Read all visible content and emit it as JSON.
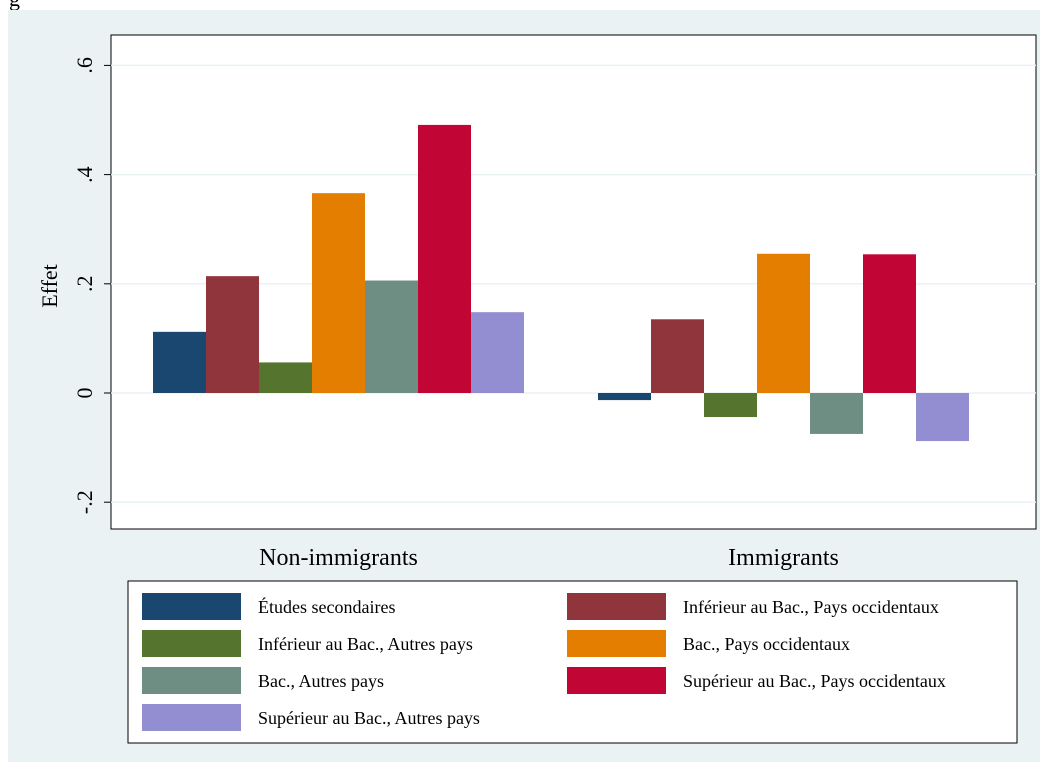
{
  "corner_label": "g",
  "colors": {
    "background": "#eaf2f3",
    "plot": "#ffffff",
    "grid": "#eaf2f3"
  },
  "chart_data": {
    "type": "bar",
    "title": "",
    "xlabel": "",
    "ylabel": "Effet",
    "ylim": [
      -0.25,
      0.65
    ],
    "yticks": [
      -0.2,
      0,
      0.2,
      0.4,
      0.6
    ],
    "ytick_labels": [
      "-.2",
      "0",
      ".2",
      ".4",
      ".6"
    ],
    "grid": true,
    "legend_position": "bottom",
    "categories": [
      "Non-immigrants",
      "Immigrants"
    ],
    "series": [
      {
        "name": "Études secondaires",
        "color": "#1a476f",
        "values": [
          0.112,
          -0.013
        ]
      },
      {
        "name": "Inférieur au Bac., Pays occidentaux",
        "color": "#90353b",
        "values": [
          0.214,
          0.135
        ]
      },
      {
        "name": "Inférieur au Bac., Autres pays",
        "color": "#55752f",
        "values": [
          0.056,
          -0.044
        ]
      },
      {
        "name": "Bac., Pays occidentaux",
        "color": "#e37e00",
        "values": [
          0.366,
          0.255
        ]
      },
      {
        "name": "Bac., Autres pays",
        "color": "#6e8e84",
        "values": [
          0.206,
          -0.075
        ]
      },
      {
        "name": "Supérieur au Bac., Pays occidentaux",
        "color": "#c10534",
        "values": [
          0.491,
          0.254
        ]
      },
      {
        "name": "Supérieur au Bac., Autres pays",
        "color": "#938dd2",
        "values": [
          0.148,
          -0.088
        ]
      }
    ]
  }
}
